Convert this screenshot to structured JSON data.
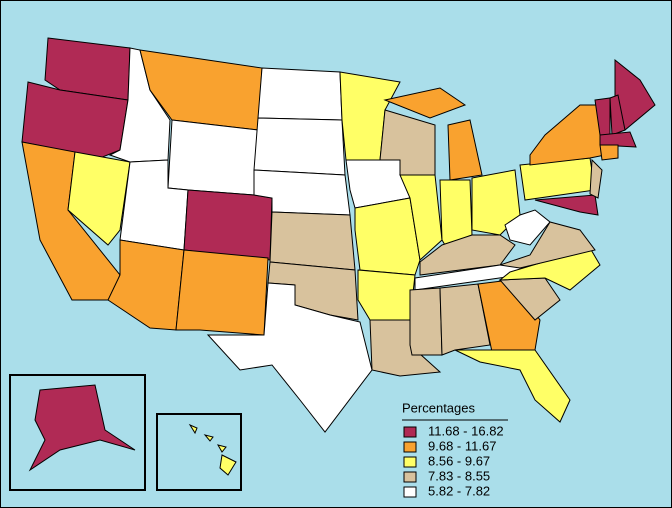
{
  "legend": {
    "title": "Percentages",
    "items": [
      {
        "label": "11.68 - 16.82",
        "color": "#b02a55"
      },
      {
        "label": "9.68 - 11.67",
        "color": "#f9a22f"
      },
      {
        "label": "8.56 - 9.67",
        "color": "#ffff66"
      },
      {
        "label": "7.83 - 8.55",
        "color": "#d8c29d"
      },
      {
        "label": "5.82 - 7.82",
        "color": "#ffffff"
      }
    ]
  }
}
